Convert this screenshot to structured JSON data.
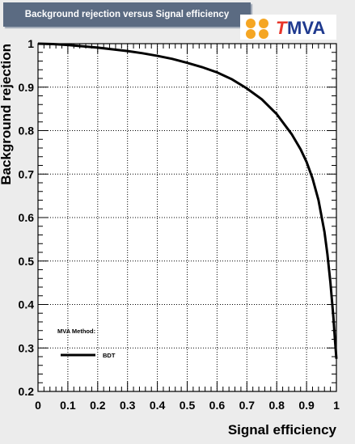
{
  "header": {
    "title": "Background rejection versus Signal efficiency",
    "logo_text_t": "T",
    "logo_text_mva": "MVA"
  },
  "colors": {
    "title_bg": "#5b6b82",
    "logo_t": "#e8352a",
    "logo_mva": "#1f3a8f",
    "logo_circles": "#f5a623",
    "curve": "#000000"
  },
  "chart_data": {
    "type": "line",
    "title": "Background rejection versus Signal efficiency",
    "xlabel": "Signal efficiency",
    "ylabel": "Background rejection",
    "xlim": [
      0,
      1
    ],
    "ylim": [
      0.2,
      1
    ],
    "x_ticks": [
      "0",
      "0.1",
      "0.2",
      "0.3",
      "0.4",
      "0.5",
      "0.6",
      "0.7",
      "0.8",
      "0.9",
      "1"
    ],
    "y_ticks": [
      "0.2",
      "0.3",
      "0.4",
      "0.5",
      "0.6",
      "0.7",
      "0.8",
      "0.9",
      "1"
    ],
    "grid": true,
    "legend": {
      "header": "MVA Method:",
      "placement": "bottom-left"
    },
    "series": [
      {
        "name": "BDT",
        "x": [
          0.0,
          0.05,
          0.1,
          0.15,
          0.2,
          0.25,
          0.3,
          0.35,
          0.4,
          0.45,
          0.5,
          0.55,
          0.6,
          0.65,
          0.7,
          0.75,
          0.8,
          0.85,
          0.88,
          0.9,
          0.92,
          0.94,
          0.96,
          0.97,
          0.98,
          0.99,
          0.995,
          1.0
        ],
        "y": [
          1.0,
          0.999,
          0.997,
          0.994,
          0.991,
          0.987,
          0.983,
          0.978,
          0.972,
          0.965,
          0.956,
          0.946,
          0.934,
          0.918,
          0.897,
          0.872,
          0.838,
          0.792,
          0.757,
          0.728,
          0.69,
          0.64,
          0.567,
          0.515,
          0.45,
          0.37,
          0.32,
          0.275
        ]
      }
    ]
  }
}
